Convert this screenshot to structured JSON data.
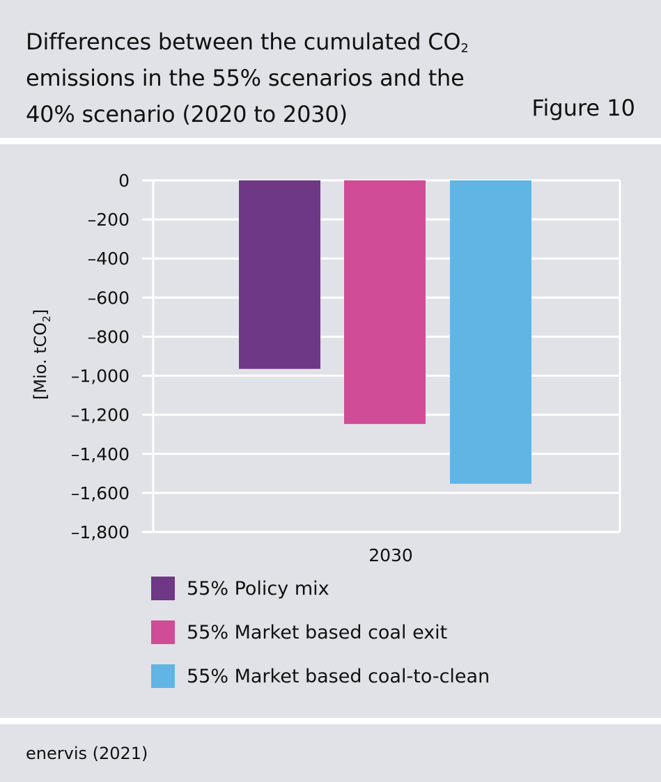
{
  "header": {
    "title_main": "Differences between the cumulated CO",
    "title_sub": "2",
    "title_rest": "emissions in the 55% scenarios and the 40% scenario (2020 to 2030)",
    "figure_label": "Figure 10"
  },
  "footer": {
    "source": "enervis (2021)"
  },
  "chart_data": {
    "type": "bar",
    "ylabel": "[Mio. tCO",
    "ylabel_sub": "2",
    "ylabel_end": "]",
    "ylim": [
      -1800,
      0
    ],
    "y_ticks": [
      0,
      -200,
      -400,
      -600,
      -800,
      -1000,
      -1200,
      -1400,
      -1600,
      -1800
    ],
    "y_tick_labels": [
      "0",
      "–200",
      "–400",
      "–600",
      "–800",
      "–1,000",
      "–1,200",
      "–1,400",
      "–1,600",
      "–1,800"
    ],
    "categories": [
      "2030"
    ],
    "grid": true,
    "legend_position": "bottom",
    "series": [
      {
        "name": "55% Policy mix",
        "values": [
          -965
        ],
        "color": "#6f3886"
      },
      {
        "name": "55% Market based coal exit",
        "values": [
          -1247
        ],
        "color": "#d04c96"
      },
      {
        "name": "55% Market based coal-to-clean",
        "values": [
          -1553
        ],
        "color": "#60b5e4"
      }
    ]
  }
}
